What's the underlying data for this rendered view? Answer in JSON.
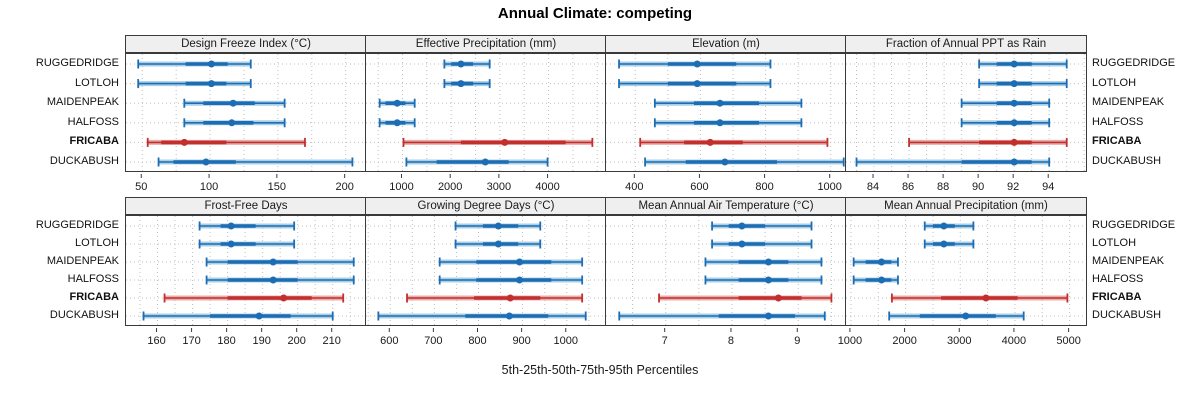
{
  "title": "Annual Climate: competing",
  "xlabel": "5th-25th-50th-75th-95th Percentiles",
  "sites": [
    "RUGGEDRIDGE",
    "LOTLOH",
    "MAIDENPEAK",
    "HALFOSS",
    "FRICABA",
    "DUCKABUSH"
  ],
  "highlight_site": "FRICABA",
  "colors": {
    "blue": "#1c6db4",
    "blue_light": "#a9cfe7",
    "red": "#c22f2d",
    "red_light": "#e8acaa",
    "strip_bg": "#efefef",
    "panel_border": "#3a3a3a",
    "grid": "#bfbfbf",
    "text": "#1a1a1a"
  },
  "chart_data": {
    "type": "dotplot",
    "subtype": "percentile-whisker (5th-25th-50th-75th-95th)",
    "legend_position": "none",
    "grid": "dotted",
    "panels": [
      {
        "title": "Design Freeze Index (°C)",
        "ticks": [
          50,
          100,
          150,
          200
        ],
        "grid_step": 25,
        "xlim": [
          38,
          215
        ],
        "series": [
          {
            "name": "RUGGEDRIDGE",
            "values": [
              47,
              82,
              101,
              113,
              130
            ]
          },
          {
            "name": "LOTLOH",
            "values": [
              47,
              82,
              101,
              112,
              130
            ]
          },
          {
            "name": "MAIDENPEAK",
            "values": [
              81,
              95,
              117,
              133,
              155
            ]
          },
          {
            "name": "HALFOSS",
            "values": [
              81,
              95,
              116,
              132,
              155
            ]
          },
          {
            "name": "FRICABA",
            "values": [
              54,
              64,
              81,
              112,
              170
            ]
          },
          {
            "name": "DUCKABUSH",
            "values": [
              62,
              73,
              97,
              119,
              205
            ]
          }
        ]
      },
      {
        "title": "Effective Precipitation (mm)",
        "ticks": [
          1000,
          2000,
          3000,
          4000
        ],
        "grid_step": 500,
        "xlim": [
          250,
          5180
        ],
        "series": [
          {
            "name": "RUGGEDRIDGE",
            "values": [
              1860,
              2000,
              2200,
              2450,
              2790
            ]
          },
          {
            "name": "LOTLOH",
            "values": [
              1860,
              2000,
              2200,
              2450,
              2790
            ]
          },
          {
            "name": "MAIDENPEAK",
            "values": [
              530,
              650,
              890,
              1060,
              1250
            ]
          },
          {
            "name": "HALFOSS",
            "values": [
              530,
              650,
              890,
              1060,
              1250
            ]
          },
          {
            "name": "FRICABA",
            "values": [
              1020,
              2200,
              3100,
              4350,
              4900
            ]
          },
          {
            "name": "DUCKABUSH",
            "values": [
              1080,
              1700,
              2700,
              3180,
              3980
            ]
          }
        ]
      },
      {
        "title": "Elevation (m)",
        "ticks": [
          400,
          600,
          800,
          1000
        ],
        "grid_step": 100,
        "xlim": [
          310,
          1047
        ],
        "series": [
          {
            "name": "RUGGEDRIDGE",
            "values": [
              350,
              500,
              590,
              710,
              815
            ]
          },
          {
            "name": "LOTLOH",
            "values": [
              350,
              500,
              590,
              710,
              815
            ]
          },
          {
            "name": "MAIDENPEAK",
            "values": [
              460,
              580,
              660,
              780,
              910
            ]
          },
          {
            "name": "HALFOSS",
            "values": [
              460,
              580,
              660,
              780,
              910
            ]
          },
          {
            "name": "FRICABA",
            "values": [
              415,
              550,
              630,
              730,
              990
            ]
          },
          {
            "name": "DUCKABUSH",
            "values": [
              430,
              555,
              675,
              835,
              1040
            ]
          }
        ]
      },
      {
        "title": "Fraction of Annual PPT as Rain",
        "ticks": [
          84,
          86,
          88,
          90,
          92,
          94
        ],
        "grid_step": 1,
        "xlim": [
          82.4,
          96.1
        ],
        "series": [
          {
            "name": "RUGGEDRIDGE",
            "values": [
              90,
              91,
              92,
              93,
              95
            ]
          },
          {
            "name": "LOTLOH",
            "values": [
              90,
              91,
              92,
              93,
              95
            ]
          },
          {
            "name": "MAIDENPEAK",
            "values": [
              89,
              91,
              92,
              93,
              94
            ]
          },
          {
            "name": "HALFOSS",
            "values": [
              89,
              91,
              92,
              93,
              94
            ]
          },
          {
            "name": "FRICABA",
            "values": [
              86,
              90,
              92,
              93,
              95
            ]
          },
          {
            "name": "DUCKABUSH",
            "values": [
              83,
              89,
              92,
              93,
              94
            ]
          }
        ]
      },
      {
        "title": "Frost-Free Days",
        "ticks": [
          160,
          170,
          180,
          190,
          200,
          210
        ],
        "grid_step": 5,
        "xlim": [
          151,
          219.5
        ],
        "series": [
          {
            "name": "RUGGEDRIDGE",
            "values": [
              172,
              178,
              181,
              188,
              199
            ]
          },
          {
            "name": "LOTLOH",
            "values": [
              172,
              178,
              181,
              188,
              199
            ]
          },
          {
            "name": "MAIDENPEAK",
            "values": [
              174,
              180,
              193,
              200,
              216
            ]
          },
          {
            "name": "HALFOSS",
            "values": [
              174,
              180,
              193,
              200,
              216
            ]
          },
          {
            "name": "FRICABA",
            "values": [
              162,
              180,
              196,
              204,
              213
            ]
          },
          {
            "name": "DUCKABUSH",
            "values": [
              156,
              175,
              189,
              198,
              210
            ]
          }
        ]
      },
      {
        "title": "Growing Degree Days (°C)",
        "ticks": [
          600,
          700,
          800,
          900,
          1000
        ],
        "grid_step": 50,
        "xlim": [
          545,
          1089
        ],
        "series": [
          {
            "name": "RUGGEDRIDGE",
            "values": [
              748,
              810,
              845,
              890,
              940
            ]
          },
          {
            "name": "LOTLOH",
            "values": [
              748,
              810,
              845,
              890,
              940
            ]
          },
          {
            "name": "MAIDENPEAK",
            "values": [
              712,
              795,
              893,
              965,
              1035
            ]
          },
          {
            "name": "HALFOSS",
            "values": [
              712,
              795,
              893,
              965,
              1035
            ]
          },
          {
            "name": "FRICABA",
            "values": [
              638,
              790,
              872,
              940,
              1035
            ]
          },
          {
            "name": "DUCKABUSH",
            "values": [
              573,
              770,
              870,
              958,
              1043
            ]
          }
        ]
      },
      {
        "title": "Mean Annual Air Temperature (°C)",
        "ticks": [
          7,
          8,
          9
        ],
        "grid_step": 0.5,
        "xlim": [
          6.1,
          9.72
        ],
        "series": [
          {
            "name": "RUGGEDRIDGE",
            "values": [
              7.7,
              7.95,
              8.15,
              8.5,
              9.2
            ]
          },
          {
            "name": "LOTLOH",
            "values": [
              7.7,
              7.95,
              8.15,
              8.5,
              9.2
            ]
          },
          {
            "name": "MAIDENPEAK",
            "values": [
              7.6,
              8.1,
              8.55,
              8.85,
              9.35
            ]
          },
          {
            "name": "HALFOSS",
            "values": [
              7.6,
              8.1,
              8.55,
              8.85,
              9.35
            ]
          },
          {
            "name": "FRICABA",
            "values": [
              6.9,
              8.1,
              8.7,
              9.05,
              9.5
            ]
          },
          {
            "name": "DUCKABUSH",
            "values": [
              6.3,
              7.8,
              8.55,
              8.95,
              9.4
            ]
          }
        ]
      },
      {
        "title": "Mean Annual Precipitation (mm)",
        "ticks": [
          1000,
          2000,
          3000,
          4000,
          5000
        ],
        "grid_step": 500,
        "xlim": [
          910,
          5300
        ],
        "series": [
          {
            "name": "RUGGEDRIDGE",
            "values": [
              2350,
              2500,
              2700,
              2900,
              3240
            ]
          },
          {
            "name": "LOTLOH",
            "values": [
              2350,
              2500,
              2700,
              2900,
              3240
            ]
          },
          {
            "name": "MAIDENPEAK",
            "values": [
              1050,
              1270,
              1560,
              1740,
              1860
            ]
          },
          {
            "name": "HALFOSS",
            "values": [
              1050,
              1270,
              1560,
              1740,
              1860
            ]
          },
          {
            "name": "FRICABA",
            "values": [
              1750,
              2650,
              3470,
              4050,
              4960
            ]
          },
          {
            "name": "DUCKABUSH",
            "values": [
              1700,
              2260,
              3100,
              3650,
              4160
            ]
          }
        ]
      }
    ]
  }
}
